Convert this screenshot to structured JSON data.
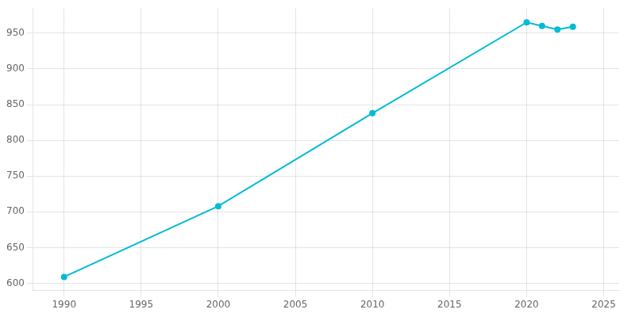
{
  "chart_data": {
    "type": "line",
    "x": [
      1990,
      2000,
      2010,
      2020,
      2021,
      2022,
      2023
    ],
    "values": [
      609,
      708,
      838,
      965,
      960,
      955,
      959
    ],
    "color": "#00BCD4",
    "marker": "circle",
    "xlim": [
      1988,
      2026
    ],
    "ylim": [
      590,
      985
    ],
    "xticks": [
      1990,
      1995,
      2000,
      2005,
      2010,
      2015,
      2020,
      2025
    ],
    "yticks": [
      600,
      650,
      700,
      750,
      800,
      850,
      900,
      950
    ],
    "grid": true
  }
}
